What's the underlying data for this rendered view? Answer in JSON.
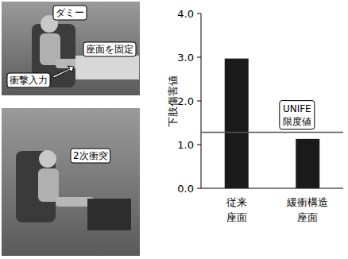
{
  "chart_data": {
    "type": "bar",
    "y_label": "下肢傷害値",
    "categories": [
      "従来\n座面",
      "緩衝構造\n座面"
    ],
    "values": [
      2.97,
      1.13
    ],
    "color": "#1a1a1a",
    "ylim": [
      0,
      4
    ],
    "yticks": [
      {
        "value": 0,
        "label": "0.0"
      },
      {
        "value": 1,
        "label": "1.0"
      },
      {
        "value": 2,
        "label": "2.0"
      },
      {
        "value": 3,
        "label": "3.0"
      },
      {
        "value": 4,
        "label": "4.0"
      }
    ],
    "grid": false,
    "annotations": [
      {
        "text": "UNIFE\n限度値",
        "value": 1.28
      }
    ]
  },
  "photos": [
    {
      "labels": [
        "ダミー",
        "座面を固定",
        "衝撃入力"
      ]
    },
    {
      "labels": [
        "2次衝突"
      ]
    }
  ]
}
